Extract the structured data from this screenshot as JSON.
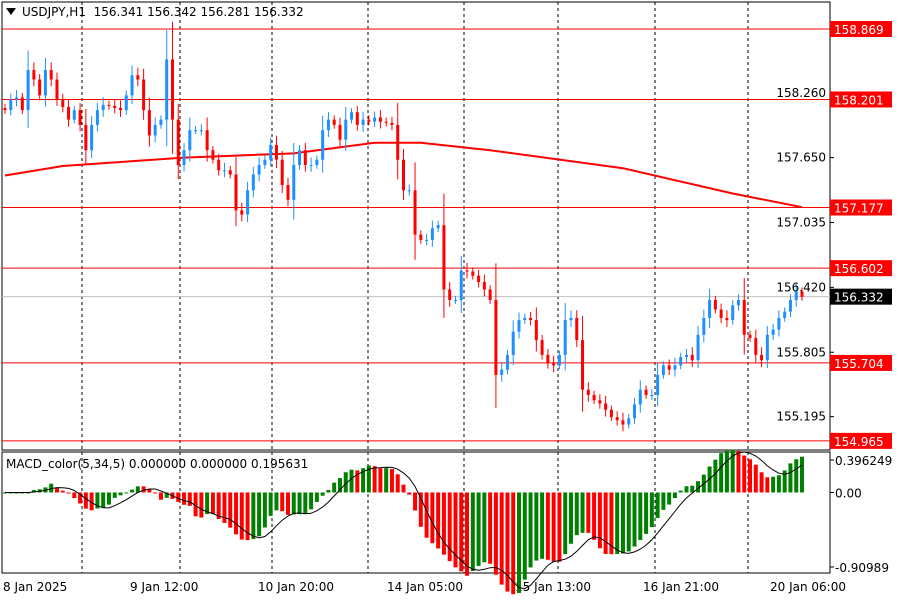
{
  "header": {
    "symbol": "USDJPY,H1",
    "open": "156.341",
    "high": "156.342",
    "low": "156.281",
    "close": "156.332"
  },
  "indicator": {
    "label": "MACD_color(5,34,5) 0.000000 0.000000 0.195631",
    "axis_top": "0.396249",
    "axis_zero": "0.00",
    "axis_bottom": "-0.90989"
  },
  "colors": {
    "bull": "#1e90ff",
    "bear": "#ff0000",
    "level": "#ff0000",
    "ma": "#ff0000",
    "macd_up": "#008000",
    "macd_down": "#ff0000",
    "current": "#000000"
  },
  "chart_data": {
    "type": "candlestick",
    "price_axis": {
      "range": [
        154.965,
        158.869
      ],
      "ticks": [
        "158.260",
        "157.650",
        "157.035",
        "156.420",
        "155.805",
        "155.195"
      ]
    },
    "time_axis": {
      "ticks": [
        "8 Jan 2025",
        "9 Jan 12:00",
        "10 Jan 20:00",
        "14 Jan 05:00",
        "15 Jan 13:00",
        "16 Jan 21:00",
        "20 Jan 06:00"
      ]
    },
    "levels": [
      "158.869",
      "158.201",
      "157.177",
      "156.602",
      "155.704",
      "154.965"
    ],
    "current_price": "156.332",
    "closes": [
      158.1,
      158.2,
      158.22,
      158.1,
      158.48,
      158.39,
      158.24,
      158.48,
      158.39,
      158.2,
      158.13,
      158.01,
      158.1,
      157.96,
      157.72,
      157.96,
      158.1,
      158.15,
      158.14,
      158.12,
      158.1,
      158.24,
      158.43,
      158.39,
      158.1,
      157.86,
      157.96,
      158.01,
      158.58,
      158.01,
      157.58,
      157.72,
      157.91,
      157.91,
      157.91,
      157.72,
      157.63,
      157.53,
      157.53,
      157.49,
      157.15,
      157.11,
      157.34,
      157.49,
      157.58,
      157.63,
      157.77,
      157.63,
      157.39,
      157.25,
      157.58,
      157.72,
      157.58,
      157.58,
      157.63,
      157.91,
      158.01,
      157.96,
      157.82,
      158.01,
      158.08,
      157.96,
      158.01,
      157.99,
      158.03,
      157.99,
      157.98,
      157.96,
      157.63,
      157.34,
      157.34,
      156.92,
      156.87,
      156.87,
      156.98,
      157.01,
      156.4,
      156.3,
      156.3,
      156.58,
      156.57,
      156.53,
      156.47,
      156.4,
      156.3,
      155.59,
      155.64,
      155.78,
      156.0,
      156.11,
      156.13,
      156.11,
      155.92,
      155.78,
      155.7,
      155.68,
      155.78,
      156.11,
      156.13,
      155.92,
      155.45,
      155.4,
      155.35,
      155.32,
      155.26,
      155.19,
      155.16,
      155.12,
      155.18,
      155.31,
      155.45,
      155.4,
      155.4,
      155.59,
      155.68,
      155.64,
      155.68,
      155.76,
      155.78,
      155.73,
      155.97,
      156.13,
      156.3,
      156.21,
      156.13,
      156.11,
      156.25,
      156.3,
      155.97,
      155.94,
      155.78,
      155.73,
      155.97,
      156.02,
      156.13,
      156.19,
      156.3,
      156.38,
      156.33
    ],
    "moving_average": [
      [
        0,
        157.48
      ],
      [
        10,
        157.57
      ],
      [
        31,
        157.65
      ],
      [
        50,
        157.69
      ],
      [
        64,
        157.79
      ],
      [
        72,
        157.79
      ],
      [
        84,
        157.72
      ],
      [
        107,
        157.55
      ],
      [
        126,
        157.31
      ],
      [
        138,
        157.18
      ]
    ],
    "macd": {
      "fast": 5,
      "slow": 34,
      "signal": 5,
      "range": [
        -0.90989,
        0.396249
      ]
    }
  }
}
